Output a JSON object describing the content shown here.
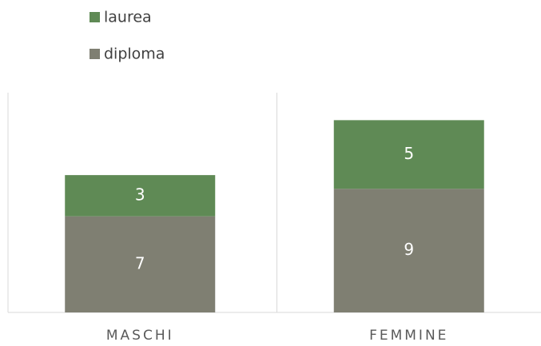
{
  "chart_data": {
    "type": "stacked_bar",
    "categories": [
      "MASCHI",
      "FEMMINE"
    ],
    "series": [
      {
        "name": "diploma",
        "color": "#7f7f72",
        "values": [
          7,
          9
        ]
      },
      {
        "name": "laurea",
        "color": "#5f8a55",
        "values": [
          3,
          5
        ]
      }
    ],
    "ylim": [
      0,
      16
    ],
    "legend": "top-left"
  }
}
